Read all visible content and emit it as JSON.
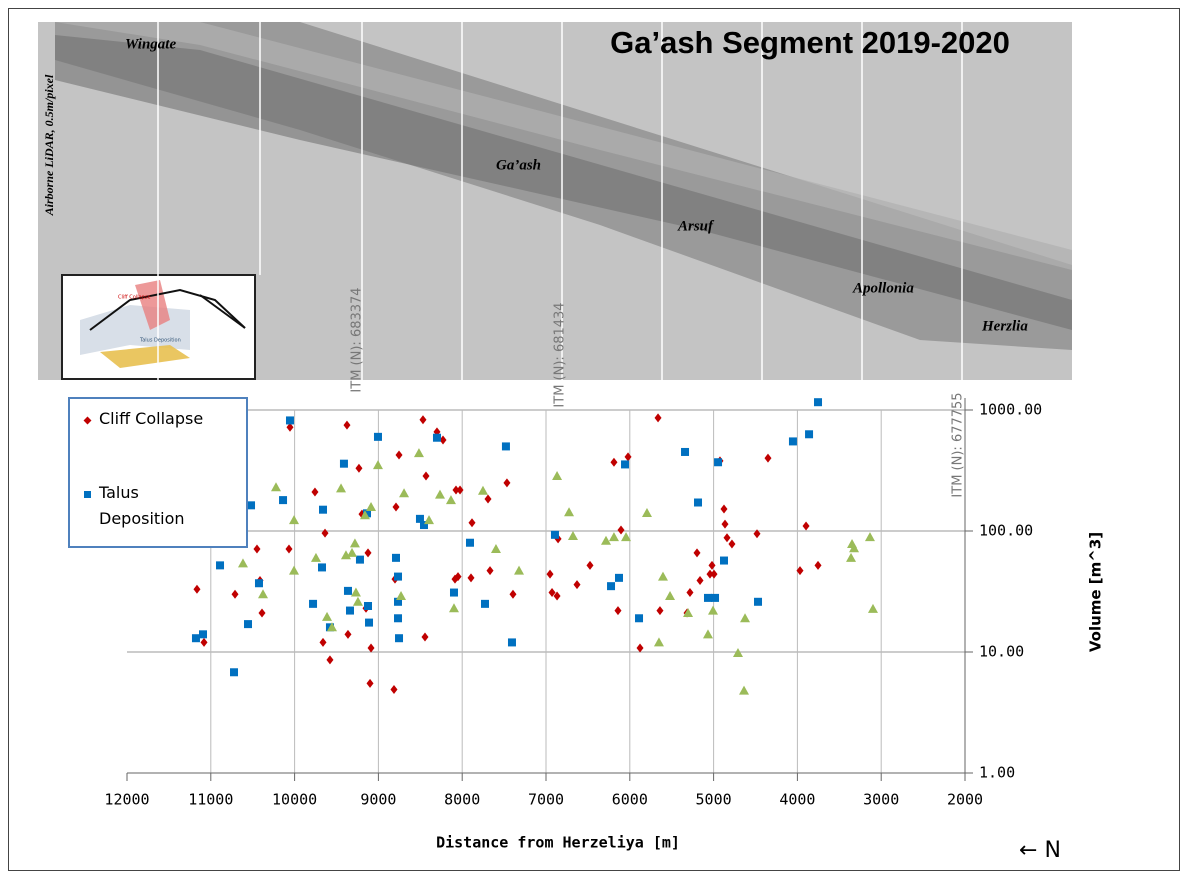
{
  "chart_data": {
    "type": "scatter",
    "title": "Ga’ash Segment 2019-2020",
    "xlabel": "Distance from Herzeliya [m]",
    "ylabel": "Volume [m^3]",
    "north_label": "← N",
    "photo_caption": "Airborne LiDAR, 0.5m/pixel",
    "places": [
      "Wingate",
      "Ga’ash",
      "Arsuf",
      "Apollonia",
      "Herzlia"
    ],
    "itm_labels": [
      "ITM (N): 683374",
      "ITM (N): 681434",
      "ITM (N): 677755"
    ],
    "inset_labels": [
      "Cliff Collapse",
      "Talus Deposition"
    ],
    "xlim": [
      12000,
      2000
    ],
    "xticks": [
      12000,
      11000,
      10000,
      9000,
      8000,
      7000,
      6000,
      5000,
      4000,
      3000,
      2000
    ],
    "ylim": [
      1,
      1000
    ],
    "log_y": true,
    "yticks": [
      {
        "value": 1,
        "label": "1.00"
      },
      {
        "value": 10,
        "label": "10.00"
      },
      {
        "value": 100,
        "label": "100.00"
      },
      {
        "value": 1000,
        "label": "1000.00"
      }
    ],
    "grid": true,
    "legend": "top-left",
    "series": [
      {
        "name": "Cliff Collapse",
        "color": "#c00000",
        "marker": "diamond",
        "x": [
          11165,
          11081,
          10711,
          10389,
          10413,
          10449,
          10067,
          10055,
          9757,
          9637,
          9661,
          9578,
          9375,
          9363,
          9232,
          9196,
          9124,
          9148,
          9100,
          9088,
          8754,
          8790,
          8802,
          8814,
          8468,
          8301,
          8432,
          8444,
          8229,
          8074,
          8026,
          8086,
          8050,
          7895,
          7883,
          7668,
          7692,
          7466,
          7394,
          6952,
          6928,
          6868,
          6856,
          6630,
          6475,
          6189,
          6141,
          6105,
          6021,
          5878,
          5663,
          5640,
          5282,
          5317,
          5198,
          5162,
          5043,
          5019,
          4995,
          4924,
          4876,
          4864,
          4840,
          4781,
          4482,
          4351,
          3897,
          3969,
          3754
        ],
        "values": [
          33,
          12,
          30,
          21,
          39,
          71,
          71,
          720,
          210,
          96,
          12,
          8.6,
          750,
          14,
          330,
          138,
          66,
          23,
          5.5,
          10.8,
          425,
          158,
          40,
          4.9,
          830,
          660,
          285,
          13.3,
          565,
          218,
          218,
          40,
          42,
          41,
          117,
          47,
          184,
          250,
          30,
          44,
          31,
          29,
          86,
          36,
          52,
          370,
          22,
          102,
          410,
          10.8,
          860,
          22,
          31,
          21,
          66,
          39,
          44,
          52,
          44,
          380,
          152,
          114,
          88,
          78,
          95,
          400,
          110,
          47,
          52
        ]
      },
      {
        "name": "Talus Deposition",
        "color": "#0070c0",
        "marker": "square",
        "x": [
          11177,
          11093,
          10890,
          10723,
          10556,
          10520,
          10425,
          10138,
          10055,
          9780,
          9661,
          9673,
          9578,
          9411,
          9363,
          9339,
          9220,
          9136,
          9124,
          9112,
          9005,
          8790,
          8766,
          8766,
          8766,
          8754,
          8504,
          8456,
          8301,
          8098,
          7907,
          7728,
          7478,
          7406,
          6893,
          6224,
          6129,
          6057,
          5890,
          5341,
          5186,
          5067,
          4983,
          4947,
          4876,
          4470,
          4053,
          3861,
          3754
        ],
        "values": [
          13,
          14,
          52,
          6.8,
          17,
          163,
          37,
          180,
          820,
          25,
          150,
          50,
          16,
          360,
          32,
          22,
          58,
          140,
          24,
          17.5,
          600,
          60,
          42,
          26,
          19,
          13,
          126,
          112,
          590,
          31,
          80,
          25,
          500,
          12,
          93,
          35,
          41,
          355,
          19,
          450,
          172,
          28,
          28,
          370,
          57,
          26,
          550,
          630,
          1160
        ]
      },
      {
        "color": "#9bbb59",
        "marker": "triangle",
        "x": [
          10222,
          10007,
          10007,
          10377,
          10616,
          9745,
          9613,
          9554,
          9446,
          9387,
          9315,
          9280,
          9268,
          9244,
          9160,
          9088,
          9005,
          8694,
          8730,
          8516,
          8396,
          8265,
          8134,
          8098,
          7752,
          7597,
          7322,
          6868,
          6725,
          6678,
          6284,
          6189,
          6045,
          5795,
          5604,
          5652,
          5520,
          5305,
          5067,
          5007,
          4625,
          4709,
          4637,
          3348,
          3324,
          3360,
          3134,
          3098
        ],
        "values": [
          230,
          123,
          47,
          30,
          54,
          60,
          19.5,
          16,
          225,
          63,
          66,
          79,
          31,
          26,
          135,
          158,
          350,
          205,
          29,
          440,
          123,
          200,
          180,
          23,
          215,
          71,
          47,
          285,
          143,
          91,
          83,
          89,
          89,
          141,
          42,
          12,
          29,
          21,
          14,
          22,
          19,
          9.8,
          4.8,
          78,
          72,
          60,
          89,
          22.7
        ]
      }
    ]
  }
}
